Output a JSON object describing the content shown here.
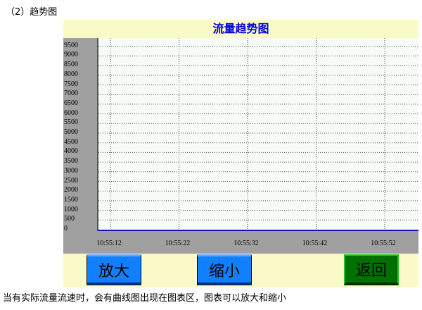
{
  "heading": "（2）趋势图",
  "panel": {
    "title": "流量趋势图",
    "buttons": {
      "zoom_in": "放大",
      "zoom_out": "缩小",
      "back": "返回"
    },
    "colors": {
      "title": "#0000e0",
      "zoom_button": "#1080ff",
      "back_button": "#007000",
      "background": "#fafac8"
    }
  },
  "chart_data": {
    "type": "line",
    "title": "流量趋势图",
    "yticks": [
      "0",
      "500",
      "1000",
      "1500",
      "2000",
      "2500",
      "3000",
      "3500",
      "4000",
      "4500",
      "5000",
      "5500",
      "6000",
      "6500",
      "7000",
      "7500",
      "8000",
      "8500",
      "9000",
      "9500"
    ],
    "xticks": [
      "10:55:12",
      "10:55:22",
      "10:55:32",
      "10:55:42",
      "10:55:52"
    ],
    "ylim": [
      0,
      9500
    ],
    "grid": true,
    "series": []
  },
  "caption": "当有实际流量流速时，会有曲线图出现在图表区，图表可以放大和缩小"
}
